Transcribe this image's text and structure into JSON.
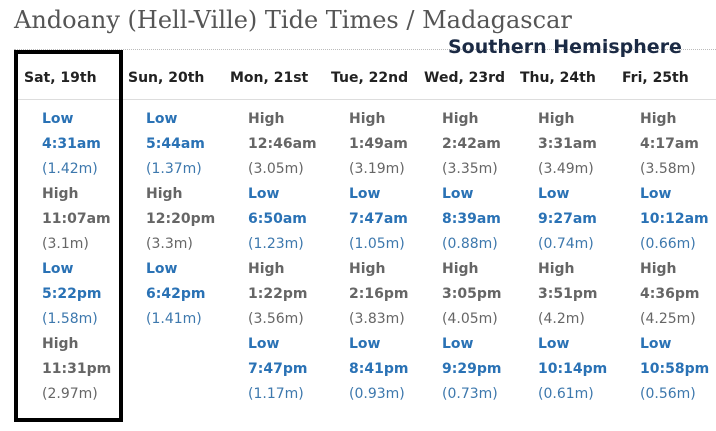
{
  "header": {
    "title": "Andoany (Hell-Ville) Tide Times / Madagascar",
    "note": "Southern Hemisphere"
  },
  "days": [
    {
      "label": "Sat, 19th",
      "tides": [
        {
          "type": "Low",
          "time": "4:31am",
          "height": "(1.42m)"
        },
        {
          "type": "High",
          "time": "11:07am",
          "height": "(3.1m)"
        },
        {
          "type": "Low",
          "time": "5:22pm",
          "height": "(1.58m)"
        },
        {
          "type": "High",
          "time": "11:31pm",
          "height": "(2.97m)"
        }
      ]
    },
    {
      "label": "Sun, 20th",
      "tides": [
        {
          "type": "Low",
          "time": "5:44am",
          "height": "(1.37m)"
        },
        {
          "type": "High",
          "time": "12:20pm",
          "height": "(3.3m)"
        },
        {
          "type": "Low",
          "time": "6:42pm",
          "height": "(1.41m)"
        }
      ]
    },
    {
      "label": "Mon, 21st",
      "tides": [
        {
          "type": "High",
          "time": "12:46am",
          "height": "(3.05m)"
        },
        {
          "type": "Low",
          "time": "6:50am",
          "height": "(1.23m)"
        },
        {
          "type": "High",
          "time": "1:22pm",
          "height": "(3.56m)"
        },
        {
          "type": "Low",
          "time": "7:47pm",
          "height": "(1.17m)"
        }
      ]
    },
    {
      "label": "Tue, 22nd",
      "tides": [
        {
          "type": "High",
          "time": "1:49am",
          "height": "(3.19m)"
        },
        {
          "type": "Low",
          "time": "7:47am",
          "height": "(1.05m)"
        },
        {
          "type": "High",
          "time": "2:16pm",
          "height": "(3.83m)"
        },
        {
          "type": "Low",
          "time": "8:41pm",
          "height": "(0.93m)"
        }
      ]
    },
    {
      "label": "Wed, 23rd",
      "tides": [
        {
          "type": "High",
          "time": "2:42am",
          "height": "(3.35m)"
        },
        {
          "type": "Low",
          "time": "8:39am",
          "height": "(0.88m)"
        },
        {
          "type": "High",
          "time": "3:05pm",
          "height": "(4.05m)"
        },
        {
          "type": "Low",
          "time": "9:29pm",
          "height": "(0.73m)"
        }
      ]
    },
    {
      "label": "Thu, 24th",
      "tides": [
        {
          "type": "High",
          "time": "3:31am",
          "height": "(3.49m)"
        },
        {
          "type": "Low",
          "time": "9:27am",
          "height": "(0.74m)"
        },
        {
          "type": "High",
          "time": "3:51pm",
          "height": "(4.2m)"
        },
        {
          "type": "Low",
          "time": "10:14pm",
          "height": "(0.61m)"
        }
      ]
    },
    {
      "label": "Fri, 25th",
      "tides": [
        {
          "type": "High",
          "time": "4:17am",
          "height": "(3.58m)"
        },
        {
          "type": "Low",
          "time": "10:12am",
          "height": "(0.66m)"
        },
        {
          "type": "High",
          "time": "4:36pm",
          "height": "(4.25m)"
        },
        {
          "type": "Low",
          "time": "10:58pm",
          "height": "(0.56m)"
        }
      ]
    }
  ]
}
